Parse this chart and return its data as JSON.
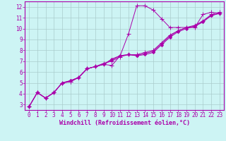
{
  "xlabel": "Windchill (Refroidissement éolien,°C)",
  "bg_color": "#cdf4f4",
  "line_color": "#aa00aa",
  "grid_color": "#aacccc",
  "xlim": [
    -0.5,
    23.5
  ],
  "ylim": [
    2.5,
    12.5
  ],
  "xticks": [
    0,
    1,
    2,
    3,
    4,
    5,
    6,
    7,
    8,
    9,
    10,
    11,
    12,
    13,
    14,
    15,
    16,
    17,
    18,
    19,
    20,
    21,
    22,
    23
  ],
  "yticks": [
    3,
    4,
    5,
    6,
    7,
    8,
    9,
    10,
    11,
    12
  ],
  "series": [
    [
      2.8,
      4.1,
      3.6,
      4.1,
      5.0,
      5.1,
      5.5,
      6.3,
      6.5,
      6.7,
      6.6,
      7.5,
      9.5,
      12.1,
      12.1,
      11.7,
      10.9,
      10.1,
      10.1,
      10.1,
      10.1,
      11.3,
      11.5,
      11.4
    ],
    [
      2.8,
      4.1,
      3.6,
      4.1,
      5.0,
      5.2,
      5.5,
      6.3,
      6.5,
      6.7,
      7.2,
      7.5,
      7.6,
      7.5,
      7.6,
      7.8,
      8.5,
      9.2,
      9.7,
      10.0,
      10.2,
      10.6,
      11.2,
      11.4
    ],
    [
      2.8,
      4.1,
      3.6,
      4.1,
      5.0,
      5.1,
      5.5,
      6.3,
      6.5,
      6.8,
      7.0,
      7.4,
      7.6,
      7.6,
      7.8,
      8.0,
      8.7,
      9.4,
      9.8,
      10.1,
      10.3,
      10.7,
      11.3,
      11.5
    ],
    [
      2.8,
      4.1,
      3.6,
      4.1,
      5.0,
      5.2,
      5.5,
      6.3,
      6.5,
      6.7,
      7.1,
      7.5,
      7.6,
      7.5,
      7.7,
      7.9,
      8.6,
      9.3,
      9.8,
      10.1,
      10.2,
      10.7,
      11.2,
      11.4
    ]
  ],
  "tick_fontsize": 5.5,
  "xlabel_fontsize": 6.0
}
